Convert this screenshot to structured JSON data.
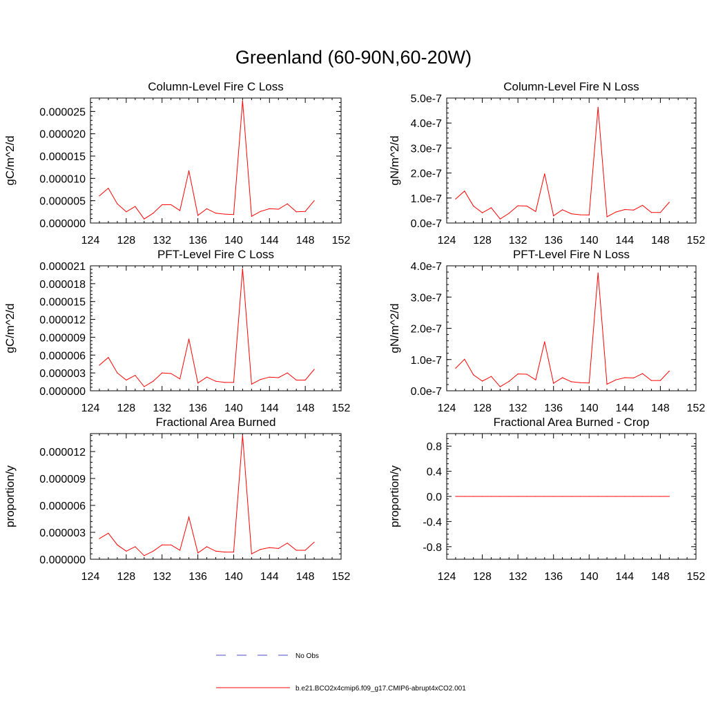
{
  "page": {
    "title": "Greenland (60-90N,60-20W)"
  },
  "colors": {
    "model_line": "#ff0000",
    "obs_line": "#4a4ac8",
    "frame": "#000000"
  },
  "chart_data": [
    {
      "type": "line",
      "title": "Column-Level Fire C Loss",
      "ylabel": "gC/m^2/d",
      "xlim": [
        124,
        152
      ],
      "ylim": [
        0,
        2.8e-05
      ],
      "xticks": [
        124,
        128,
        132,
        136,
        140,
        144,
        148,
        152
      ],
      "xtick_labels": [
        "124",
        "128",
        "132",
        "136",
        "140",
        "144",
        "148",
        "152"
      ],
      "yticks": [
        0,
        5e-06,
        1e-05,
        1.5e-05,
        2e-05,
        2.5e-05
      ],
      "ytick_labels": [
        "0.000000",
        "0.000005",
        "0.000010",
        "0.000015",
        "0.000020",
        "0.000025"
      ],
      "x": [
        125,
        126,
        127,
        128,
        129,
        130,
        131,
        132,
        133,
        134,
        135,
        136,
        137,
        138,
        139,
        140,
        141,
        142,
        143,
        144,
        145,
        146,
        147,
        148,
        149
      ],
      "series": [
        {
          "name": "b.e21.BCO2x4cmip6.f09_g17.CMIP6-abrupt4xCO2.001",
          "values": [
            6.1e-06,
            7.8e-06,
            4.3e-06,
            2.5e-06,
            3.7e-06,
            9e-07,
            2.2e-06,
            4.1e-06,
            4.1e-06,
            2.8e-06,
            1.17e-05,
            1.7e-06,
            3.2e-06,
            2.2e-06,
            2e-06,
            1.9e-06,
            2.74e-05,
            1.5e-06,
            2.6e-06,
            3.2e-06,
            3.1e-06,
            4.3e-06,
            2.5e-06,
            2.6e-06,
            5e-06
          ]
        }
      ]
    },
    {
      "type": "line",
      "title": "Column-Level Fire N Loss",
      "ylabel": "gN/m^2/d",
      "xlim": [
        124,
        152
      ],
      "ylim": [
        0,
        5e-07
      ],
      "xticks": [
        124,
        128,
        132,
        136,
        140,
        144,
        148,
        152
      ],
      "xtick_labels": [
        "124",
        "128",
        "132",
        "136",
        "140",
        "144",
        "148",
        "152"
      ],
      "yticks": [
        0,
        1e-07,
        2e-07,
        3e-07,
        4e-07,
        5e-07
      ],
      "ytick_labels": [
        "0.0e-7",
        "1.0e-7",
        "2.0e-7",
        "3.0e-7",
        "4.0e-7",
        "5.0e-7"
      ],
      "x": [
        125,
        126,
        127,
        128,
        129,
        130,
        131,
        132,
        133,
        134,
        135,
        136,
        137,
        138,
        139,
        140,
        141,
        142,
        143,
        144,
        145,
        146,
        147,
        148,
        149
      ],
      "series": [
        {
          "name": "b.e21.BCO2x4cmip6.f09_g17.CMIP6-abrupt4xCO2.001",
          "values": [
            9.6e-08,
            1.28e-07,
            6.8e-08,
            4.1e-08,
            6.1e-08,
            1.6e-08,
            3.9e-08,
            6.9e-08,
            6.8e-08,
            4.6e-08,
            1.97e-07,
            2.9e-08,
            5.3e-08,
            3.7e-08,
            3.3e-08,
            3.2e-08,
            4.63e-07,
            2.5e-08,
            4.4e-08,
            5.4e-08,
            5.2e-08,
            7.1e-08,
            4.2e-08,
            4.2e-08,
            8.3e-08
          ]
        }
      ]
    },
    {
      "type": "line",
      "title": "PFT-Level Fire C Loss",
      "ylabel": "gC/m^2/d",
      "xlim": [
        124,
        152
      ],
      "ylim": [
        0,
        2.1e-05
      ],
      "xticks": [
        124,
        128,
        132,
        136,
        140,
        144,
        148,
        152
      ],
      "xtick_labels": [
        "124",
        "128",
        "132",
        "136",
        "140",
        "144",
        "148",
        "152"
      ],
      "yticks": [
        0,
        3e-06,
        6e-06,
        9e-06,
        1.2e-05,
        1.5e-05,
        1.8e-05,
        2.1e-05
      ],
      "ytick_labels": [
        "0.000000",
        "0.000003",
        "0.000006",
        "0.000009",
        "0.000012",
        "0.000015",
        "0.000018",
        "0.000021"
      ],
      "x": [
        125,
        126,
        127,
        128,
        129,
        130,
        131,
        132,
        133,
        134,
        135,
        136,
        137,
        138,
        139,
        140,
        141,
        142,
        143,
        144,
        145,
        146,
        147,
        148,
        149
      ],
      "series": [
        {
          "name": "b.e21.BCO2x4cmip6.f09_g17.CMIP6-abrupt4xCO2.001",
          "values": [
            4.3e-06,
            5.6e-06,
            3e-06,
            1.8e-06,
            2.6e-06,
            7e-07,
            1.6e-06,
            3e-06,
            2.9e-06,
            2e-06,
            8.7e-06,
            1.3e-06,
            2.3e-06,
            1.6e-06,
            1.4e-06,
            1.4e-06,
            2.05e-05,
            1.1e-06,
            1.9e-06,
            2.3e-06,
            2.2e-06,
            3e-06,
            1.8e-06,
            1.8e-06,
            3.6e-06
          ]
        }
      ]
    },
    {
      "type": "line",
      "title": "PFT-Level Fire N Loss",
      "ylabel": "gN/m^2/d",
      "xlim": [
        124,
        152
      ],
      "ylim": [
        0,
        4e-07
      ],
      "xticks": [
        124,
        128,
        132,
        136,
        140,
        144,
        148,
        152
      ],
      "xtick_labels": [
        "124",
        "128",
        "132",
        "136",
        "140",
        "144",
        "148",
        "152"
      ],
      "yticks": [
        0,
        1e-07,
        2e-07,
        3e-07,
        4e-07
      ],
      "ytick_labels": [
        "0.0e-7",
        "1.0e-7",
        "2.0e-7",
        "3.0e-7",
        "4.0e-7"
      ],
      "x": [
        125,
        126,
        127,
        128,
        129,
        130,
        131,
        132,
        133,
        134,
        135,
        136,
        137,
        138,
        139,
        140,
        141,
        142,
        143,
        144,
        145,
        146,
        147,
        148,
        149
      ],
      "series": [
        {
          "name": "b.e21.BCO2x4cmip6.f09_g17.CMIP6-abrupt4xCO2.001",
          "values": [
            7.2e-08,
            1.01e-07,
            5.1e-08,
            3.1e-08,
            4.6e-08,
            1.3e-08,
            3e-08,
            5.4e-08,
            5.3e-08,
            3.5e-08,
            1.57e-07,
            2.4e-08,
            4.2e-08,
            2.9e-08,
            2.6e-08,
            2.5e-08,
            3.77e-07,
            2.1e-08,
            3.5e-08,
            4.2e-08,
            4.1e-08,
            5.5e-08,
            3.3e-08,
            3.3e-08,
            6.3e-08
          ]
        }
      ]
    },
    {
      "type": "line",
      "title": "Fractional Area Burned",
      "ylabel": "proportion/y",
      "xlim": [
        124,
        152
      ],
      "ylim": [
        0,
        1.4e-05
      ],
      "xticks": [
        124,
        128,
        132,
        136,
        140,
        144,
        148,
        152
      ],
      "xtick_labels": [
        "124",
        "128",
        "132",
        "136",
        "140",
        "144",
        "148",
        "152"
      ],
      "yticks": [
        0,
        3e-06,
        6e-06,
        9e-06,
        1.2e-05
      ],
      "ytick_labels": [
        "0.000000",
        "0.000003",
        "0.000006",
        "0.000009",
        "0.000012"
      ],
      "x": [
        125,
        126,
        127,
        128,
        129,
        130,
        131,
        132,
        133,
        134,
        135,
        136,
        137,
        138,
        139,
        140,
        141,
        142,
        143,
        144,
        145,
        146,
        147,
        148,
        149
      ],
      "series": [
        {
          "name": "b.e21.BCO2x4cmip6.f09_g17.CMIP6-abrupt4xCO2.001",
          "values": [
            2.3e-06,
            2.9e-06,
            1.6e-06,
            9e-07,
            1.4e-06,
            4e-07,
            9e-07,
            1.6e-06,
            1.6e-06,
            1e-06,
            4.7e-06,
            7e-07,
            1.4e-06,
            9e-07,
            8e-07,
            8e-07,
            1.38e-05,
            6e-07,
            1.1e-06,
            1.3e-06,
            1.2e-06,
            1.8e-06,
            1e-06,
            1e-06,
            1.9e-06
          ]
        }
      ]
    },
    {
      "type": "line",
      "title": "Fractional Area Burned - Crop",
      "ylabel": "proportion/y",
      "xlim": [
        124,
        152
      ],
      "ylim": [
        -1,
        1
      ],
      "xticks": [
        124,
        128,
        132,
        136,
        140,
        144,
        148,
        152
      ],
      "xtick_labels": [
        "124",
        "128",
        "132",
        "136",
        "140",
        "144",
        "148",
        "152"
      ],
      "yticks": [
        -0.8,
        -0.4,
        0,
        0.4,
        0.8
      ],
      "ytick_labels": [
        "-0.8",
        "-0.4",
        "0.0",
        "0.4",
        "0.8"
      ],
      "x": [
        125,
        126,
        127,
        128,
        129,
        130,
        131,
        132,
        133,
        134,
        135,
        136,
        137,
        138,
        139,
        140,
        141,
        142,
        143,
        144,
        145,
        146,
        147,
        148,
        149
      ],
      "series": [
        {
          "name": "b.e21.BCO2x4cmip6.f09_g17.CMIP6-abrupt4xCO2.001",
          "values": [
            0,
            0,
            0,
            0,
            0,
            0,
            0,
            0,
            0,
            0,
            0,
            0,
            0,
            0,
            0,
            0,
            0,
            0,
            0,
            0,
            0,
            0,
            0,
            0,
            0
          ]
        }
      ]
    }
  ],
  "legend": {
    "items": [
      {
        "label": "No Obs",
        "style": "dashed",
        "color": "#4a4ac8"
      },
      {
        "label": "b.e21.BCO2x4cmip6.f09_g17.CMIP6-abrupt4xCO2.001",
        "style": "solid",
        "color": "#ff0000"
      }
    ]
  }
}
